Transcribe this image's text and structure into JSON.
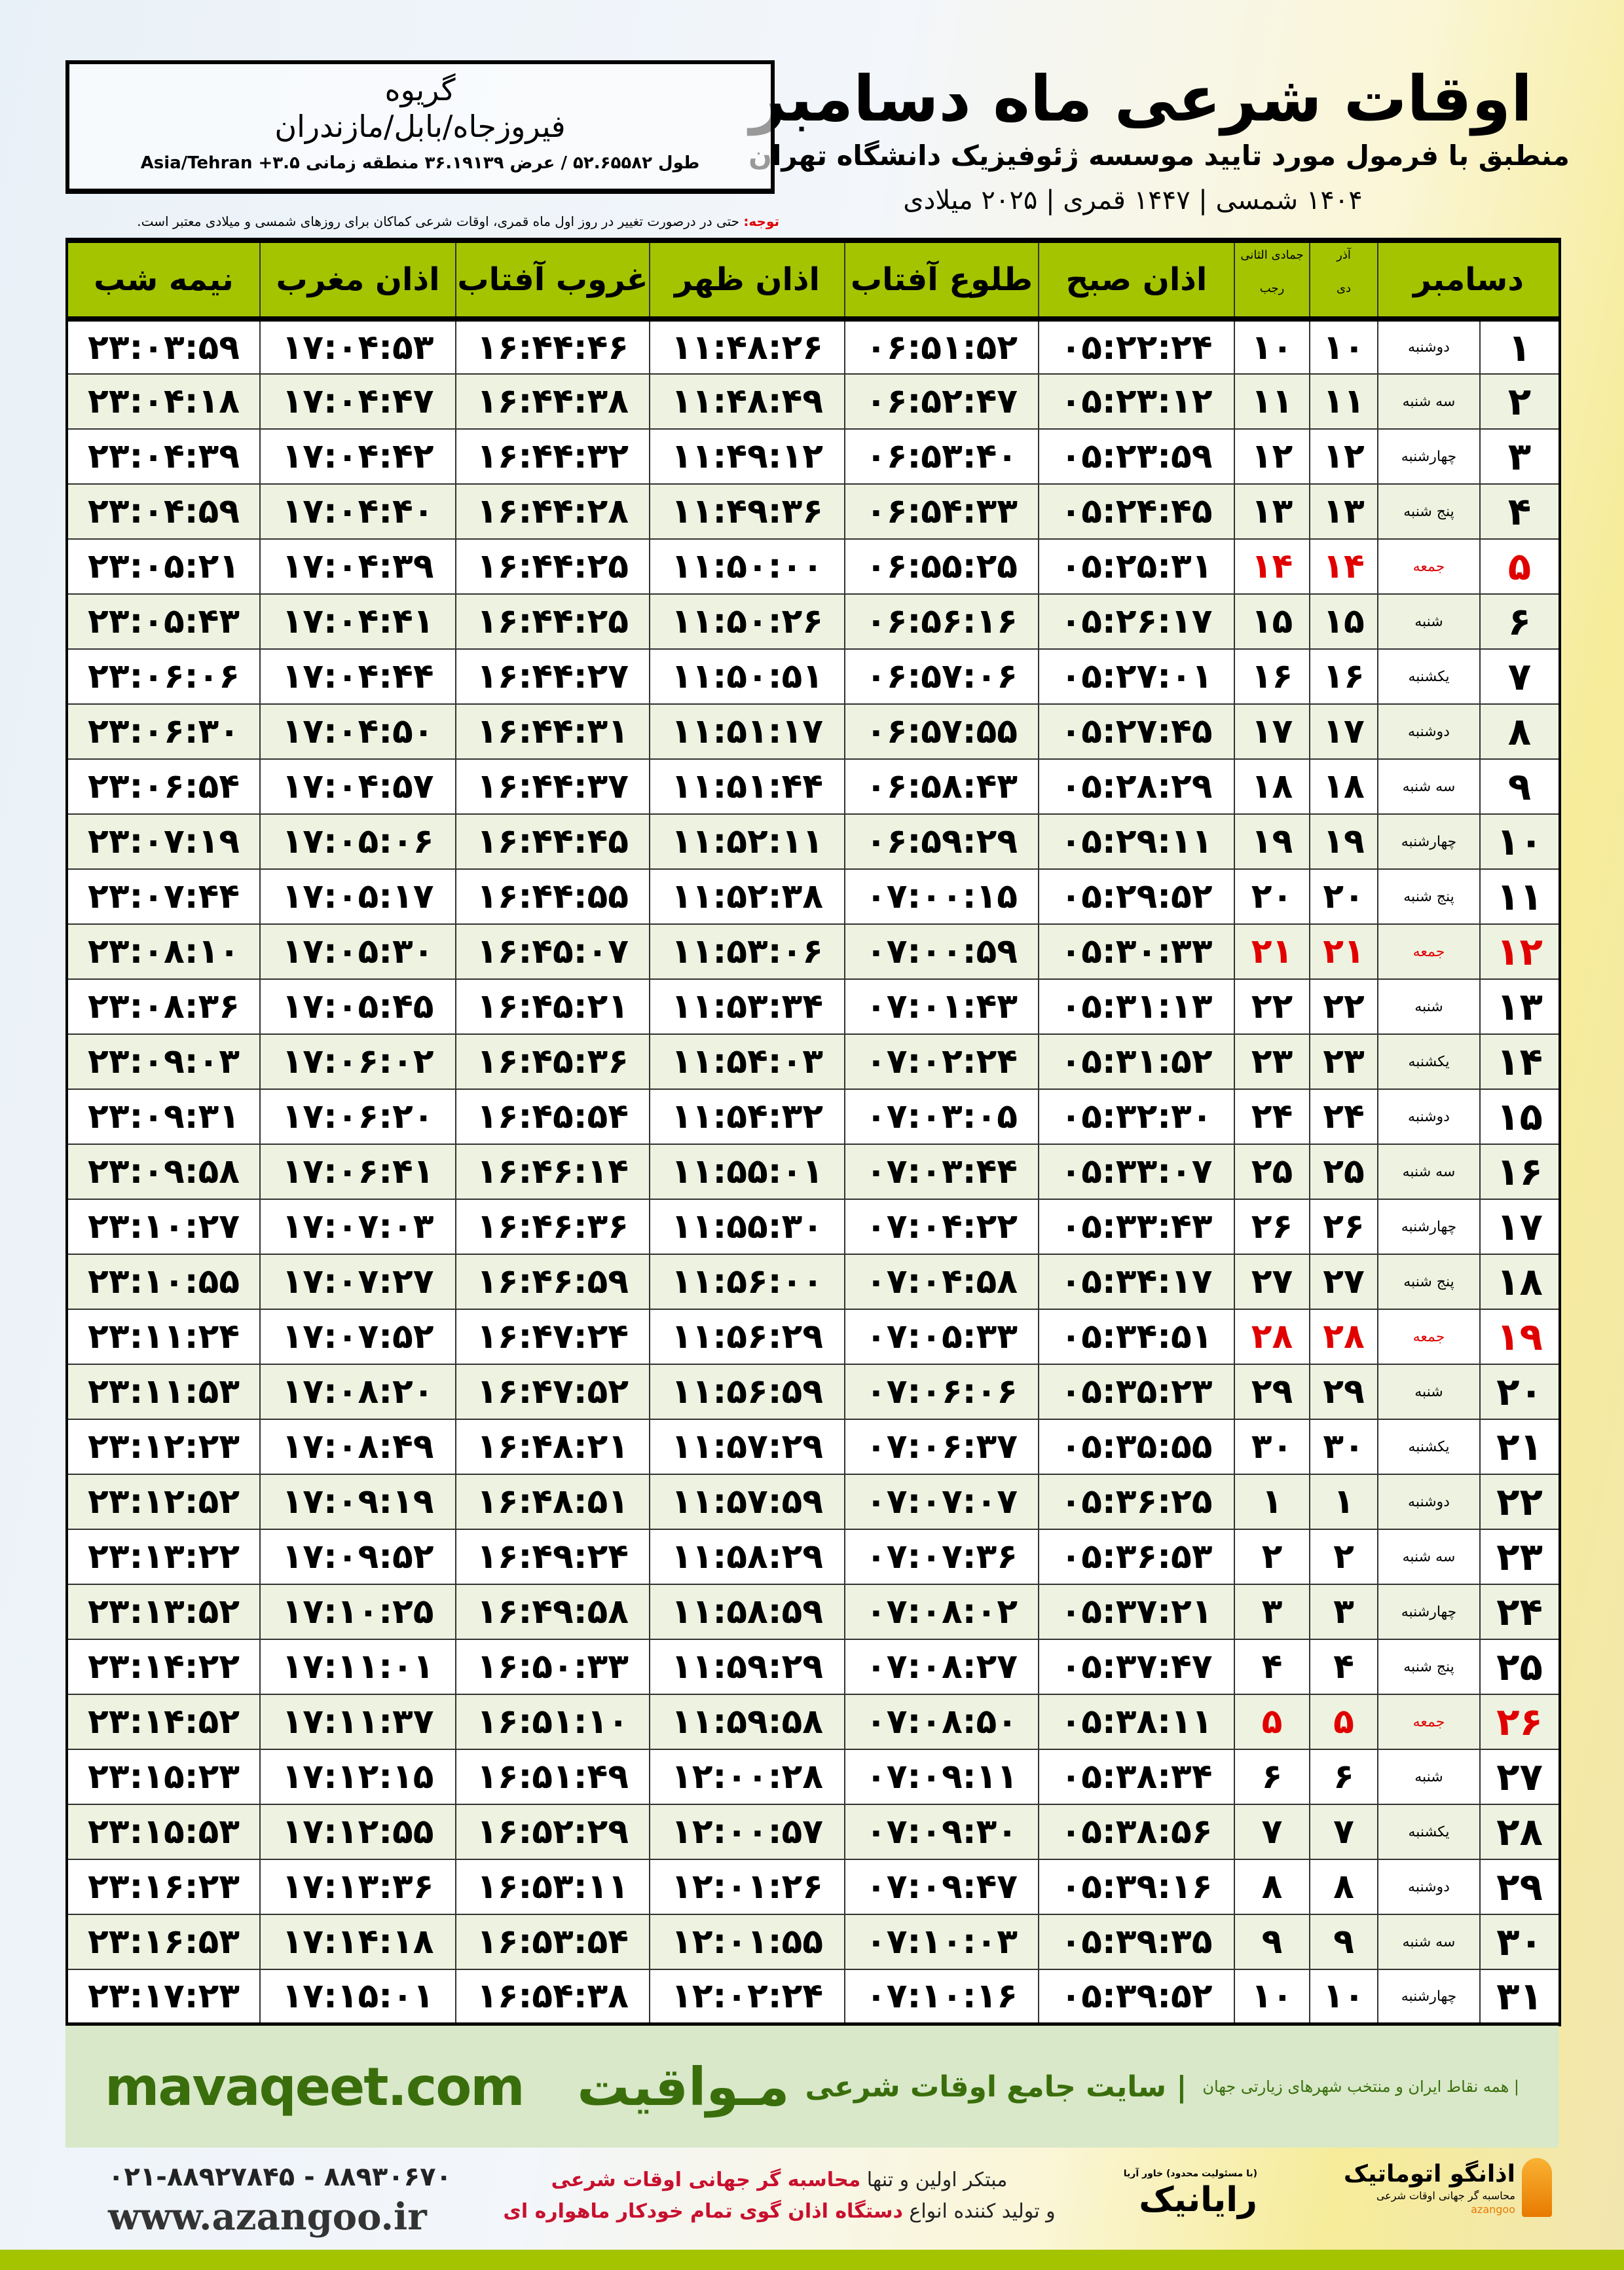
{
  "header": {
    "title": "اوقات شرعی ماه دسامبر",
    "subtitle": "منطبق با فرمول مورد تایید موسسه ژئوفیزیک دانشگاه تهران",
    "years": "۱۴۰۴ شمسی | ۱۴۴۷ قمری | ۲۰۲۵ میلادی"
  },
  "location": {
    "city": "گریوه",
    "region": "فیروزجاه/بابل/مازندران",
    "coords": "طول ۵۲.۶۵۵۸۲ / عرض ۳۶.۱۹۱۳۹ منطقه زمانی ۳.۵+ Asia/Tehran"
  },
  "note": {
    "label": "توجه:",
    "text": " حتی در درصورت تغییر در روز اول ماه قمری، اوقات شرعی کماکان برای روزهای شمسی و میلادی معتبر است."
  },
  "table": {
    "headers": {
      "month": "دسامبر",
      "dey_top": "آذر",
      "dey": "دی",
      "rajab_top": "جمادی الثانی",
      "rajab": "رجب",
      "sobh": "اذان صبح",
      "tolu": "طلوع آفتاب",
      "zohr": "اذان ظهر",
      "ghorub": "غروب آفتاب",
      "maghreb": "اذان مغرب",
      "nimeshab": "نیمه شب"
    },
    "friday_color": "#e00000",
    "rows": [
      [
        "۱",
        "دوشنبه",
        "۱۰",
        "۱۰",
        "۰۵:۲۲:۲۴",
        "۰۶:۵۱:۵۲",
        "۱۱:۴۸:۲۶",
        "۱۶:۴۴:۴۶",
        "۱۷:۰۴:۵۳",
        "۲۳:۰۳:۵۹"
      ],
      [
        "۲",
        "سه شنبه",
        "۱۱",
        "۱۱",
        "۰۵:۲۳:۱۲",
        "۰۶:۵۲:۴۷",
        "۱۱:۴۸:۴۹",
        "۱۶:۴۴:۳۸",
        "۱۷:۰۴:۴۷",
        "۲۳:۰۴:۱۸"
      ],
      [
        "۳",
        "چهارشنبه",
        "۱۲",
        "۱۲",
        "۰۵:۲۳:۵۹",
        "۰۶:۵۳:۴۰",
        "۱۱:۴۹:۱۲",
        "۱۶:۴۴:۳۲",
        "۱۷:۰۴:۴۲",
        "۲۳:۰۴:۳۹"
      ],
      [
        "۴",
        "پنج شنبه",
        "۱۳",
        "۱۳",
        "۰۵:۲۴:۴۵",
        "۰۶:۵۴:۳۳",
        "۱۱:۴۹:۳۶",
        "۱۶:۴۴:۲۸",
        "۱۷:۰۴:۴۰",
        "۲۳:۰۴:۵۹"
      ],
      [
        "۵",
        "جمعه",
        "۱۴",
        "۱۴",
        "۰۵:۲۵:۳۱",
        "۰۶:۵۵:۲۵",
        "۱۱:۵۰:۰۰",
        "۱۶:۴۴:۲۵",
        "۱۷:۰۴:۳۹",
        "۲۳:۰۵:۲۱"
      ],
      [
        "۶",
        "شنبه",
        "۱۵",
        "۱۵",
        "۰۵:۲۶:۱۷",
        "۰۶:۵۶:۱۶",
        "۱۱:۵۰:۲۶",
        "۱۶:۴۴:۲۵",
        "۱۷:۰۴:۴۱",
        "۲۳:۰۵:۴۳"
      ],
      [
        "۷",
        "یکشنبه",
        "۱۶",
        "۱۶",
        "۰۵:۲۷:۰۱",
        "۰۶:۵۷:۰۶",
        "۱۱:۵۰:۵۱",
        "۱۶:۴۴:۲۷",
        "۱۷:۰۴:۴۴",
        "۲۳:۰۶:۰۶"
      ],
      [
        "۸",
        "دوشنبه",
        "۱۷",
        "۱۷",
        "۰۵:۲۷:۴۵",
        "۰۶:۵۷:۵۵",
        "۱۱:۵۱:۱۷",
        "۱۶:۴۴:۳۱",
        "۱۷:۰۴:۵۰",
        "۲۳:۰۶:۳۰"
      ],
      [
        "۹",
        "سه شنبه",
        "۱۸",
        "۱۸",
        "۰۵:۲۸:۲۹",
        "۰۶:۵۸:۴۳",
        "۱۱:۵۱:۴۴",
        "۱۶:۴۴:۳۷",
        "۱۷:۰۴:۵۷",
        "۲۳:۰۶:۵۴"
      ],
      [
        "۱۰",
        "چهارشنبه",
        "۱۹",
        "۱۹",
        "۰۵:۲۹:۱۱",
        "۰۶:۵۹:۲۹",
        "۱۱:۵۲:۱۱",
        "۱۶:۴۴:۴۵",
        "۱۷:۰۵:۰۶",
        "۲۳:۰۷:۱۹"
      ],
      [
        "۱۱",
        "پنج شنبه",
        "۲۰",
        "۲۰",
        "۰۵:۲۹:۵۲",
        "۰۷:۰۰:۱۵",
        "۱۱:۵۲:۳۸",
        "۱۶:۴۴:۵۵",
        "۱۷:۰۵:۱۷",
        "۲۳:۰۷:۴۴"
      ],
      [
        "۱۲",
        "جمعه",
        "۲۱",
        "۲۱",
        "۰۵:۳۰:۳۳",
        "۰۷:۰۰:۵۹",
        "۱۱:۵۳:۰۶",
        "۱۶:۴۵:۰۷",
        "۱۷:۰۵:۳۰",
        "۲۳:۰۸:۱۰"
      ],
      [
        "۱۳",
        "شنبه",
        "۲۲",
        "۲۲",
        "۰۵:۳۱:۱۳",
        "۰۷:۰۱:۴۳",
        "۱۱:۵۳:۳۴",
        "۱۶:۴۵:۲۱",
        "۱۷:۰۵:۴۵",
        "۲۳:۰۸:۳۶"
      ],
      [
        "۱۴",
        "یکشنبه",
        "۲۳",
        "۲۳",
        "۰۵:۳۱:۵۲",
        "۰۷:۰۲:۲۴",
        "۱۱:۵۴:۰۳",
        "۱۶:۴۵:۳۶",
        "۱۷:۰۶:۰۲",
        "۲۳:۰۹:۰۳"
      ],
      [
        "۱۵",
        "دوشنبه",
        "۲۴",
        "۲۴",
        "۰۵:۳۲:۳۰",
        "۰۷:۰۳:۰۵",
        "۱۱:۵۴:۳۲",
        "۱۶:۴۵:۵۴",
        "۱۷:۰۶:۲۰",
        "۲۳:۰۹:۳۱"
      ],
      [
        "۱۶",
        "سه شنبه",
        "۲۵",
        "۲۵",
        "۰۵:۳۳:۰۷",
        "۰۷:۰۳:۴۴",
        "۱۱:۵۵:۰۱",
        "۱۶:۴۶:۱۴",
        "۱۷:۰۶:۴۱",
        "۲۳:۰۹:۵۸"
      ],
      [
        "۱۷",
        "چهارشنبه",
        "۲۶",
        "۲۶",
        "۰۵:۳۳:۴۳",
        "۰۷:۰۴:۲۲",
        "۱۱:۵۵:۳۰",
        "۱۶:۴۶:۳۶",
        "۱۷:۰۷:۰۳",
        "۲۳:۱۰:۲۷"
      ],
      [
        "۱۸",
        "پنج شنبه",
        "۲۷",
        "۲۷",
        "۰۵:۳۴:۱۷",
        "۰۷:۰۴:۵۸",
        "۱۱:۵۶:۰۰",
        "۱۶:۴۶:۵۹",
        "۱۷:۰۷:۲۷",
        "۲۳:۱۰:۵۵"
      ],
      [
        "۱۹",
        "جمعه",
        "۲۸",
        "۲۸",
        "۰۵:۳۴:۵۱",
        "۰۷:۰۵:۳۳",
        "۱۱:۵۶:۲۹",
        "۱۶:۴۷:۲۴",
        "۱۷:۰۷:۵۲",
        "۲۳:۱۱:۲۴"
      ],
      [
        "۲۰",
        "شنبه",
        "۲۹",
        "۲۹",
        "۰۵:۳۵:۲۳",
        "۰۷:۰۶:۰۶",
        "۱۱:۵۶:۵۹",
        "۱۶:۴۷:۵۲",
        "۱۷:۰۸:۲۰",
        "۲۳:۱۱:۵۳"
      ],
      [
        "۲۱",
        "یکشنبه",
        "۳۰",
        "۳۰",
        "۰۵:۳۵:۵۵",
        "۰۷:۰۶:۳۷",
        "۱۱:۵۷:۲۹",
        "۱۶:۴۸:۲۱",
        "۱۷:۰۸:۴۹",
        "۲۳:۱۲:۲۳"
      ],
      [
        "۲۲",
        "دوشنبه",
        "۱",
        "۱",
        "۰۵:۳۶:۲۵",
        "۰۷:۰۷:۰۷",
        "۱۱:۵۷:۵۹",
        "۱۶:۴۸:۵۱",
        "۱۷:۰۹:۱۹",
        "۲۳:۱۲:۵۲"
      ],
      [
        "۲۳",
        "سه شنبه",
        "۲",
        "۲",
        "۰۵:۳۶:۵۳",
        "۰۷:۰۷:۳۶",
        "۱۱:۵۸:۲۹",
        "۱۶:۴۹:۲۴",
        "۱۷:۰۹:۵۲",
        "۲۳:۱۳:۲۲"
      ],
      [
        "۲۴",
        "چهارشنبه",
        "۳",
        "۳",
        "۰۵:۳۷:۲۱",
        "۰۷:۰۸:۰۲",
        "۱۱:۵۸:۵۹",
        "۱۶:۴۹:۵۸",
        "۱۷:۱۰:۲۵",
        "۲۳:۱۳:۵۲"
      ],
      [
        "۲۵",
        "پنج شنبه",
        "۴",
        "۴",
        "۰۵:۳۷:۴۷",
        "۰۷:۰۸:۲۷",
        "۱۱:۵۹:۲۹",
        "۱۶:۵۰:۳۳",
        "۱۷:۱۱:۰۱",
        "۲۳:۱۴:۲۲"
      ],
      [
        "۲۶",
        "جمعه",
        "۵",
        "۵",
        "۰۵:۳۸:۱۱",
        "۰۷:۰۸:۵۰",
        "۱۱:۵۹:۵۸",
        "۱۶:۵۱:۱۰",
        "۱۷:۱۱:۳۷",
        "۲۳:۱۴:۵۲"
      ],
      [
        "۲۷",
        "شنبه",
        "۶",
        "۶",
        "۰۵:۳۸:۳۴",
        "۰۷:۰۹:۱۱",
        "۱۲:۰۰:۲۸",
        "۱۶:۵۱:۴۹",
        "۱۷:۱۲:۱۵",
        "۲۳:۱۵:۲۳"
      ],
      [
        "۲۸",
        "یکشنبه",
        "۷",
        "۷",
        "۰۵:۳۸:۵۶",
        "۰۷:۰۹:۳۰",
        "۱۲:۰۰:۵۷",
        "۱۶:۵۲:۲۹",
        "۱۷:۱۲:۵۵",
        "۲۳:۱۵:۵۳"
      ],
      [
        "۲۹",
        "دوشنبه",
        "۸",
        "۸",
        "۰۵:۳۹:۱۶",
        "۰۷:۰۹:۴۷",
        "۱۲:۰۱:۲۶",
        "۱۶:۵۳:۱۱",
        "۱۷:۱۳:۳۶",
        "۲۳:۱۶:۲۳"
      ],
      [
        "۳۰",
        "سه شنبه",
        "۹",
        "۹",
        "۰۵:۳۹:۳۵",
        "۰۷:۱۰:۰۳",
        "۱۲:۰۱:۵۵",
        "۱۶:۵۳:۵۴",
        "۱۷:۱۴:۱۸",
        "۲۳:۱۶:۵۳"
      ],
      [
        "۳۱",
        "چهارشنبه",
        "۱۰",
        "۱۰",
        "۰۵:۳۹:۵۲",
        "۰۷:۱۰:۱۶",
        "۱۲:۰۲:۲۴",
        "۱۶:۵۴:۳۸",
        "۱۷:۱۵:۰۱",
        "۲۳:۱۷:۲۳"
      ]
    ]
  },
  "footer": {
    "brand": "مـواقیت",
    "slogan": "| سایت جامع اوقات شرعی",
    "tagline": "| همه نقاط ایران و منتخب شهرهای زیارتی جهان",
    "site": "mavaqeet.com",
    "phones": "۰۲۱-۸۸۹۲۷۸۴۵ - ۸۸۹۳۰۶۷۰",
    "web": "www.azangoo.ir",
    "promo1a": "مبتکر اولین و تنها ",
    "promo1b": "محاسبه گر جهانی اوقات شرعی",
    "promo2a": "و تولید کننده انواع ",
    "promo2b": "دستگاه اذان گوی تمام خودکار ماهواره ای",
    "logo_rayanik": "رایانیک",
    "logo_rayanik_small": "(با مسئولیت محدود) خاور آریا",
    "logo_azangoo": "اذانگو اتوماتیک",
    "logo_azangoo_sub": "محاسبه گر جهانی اوقات شرعی",
    "logo_azangoo_en": "azangoo"
  }
}
